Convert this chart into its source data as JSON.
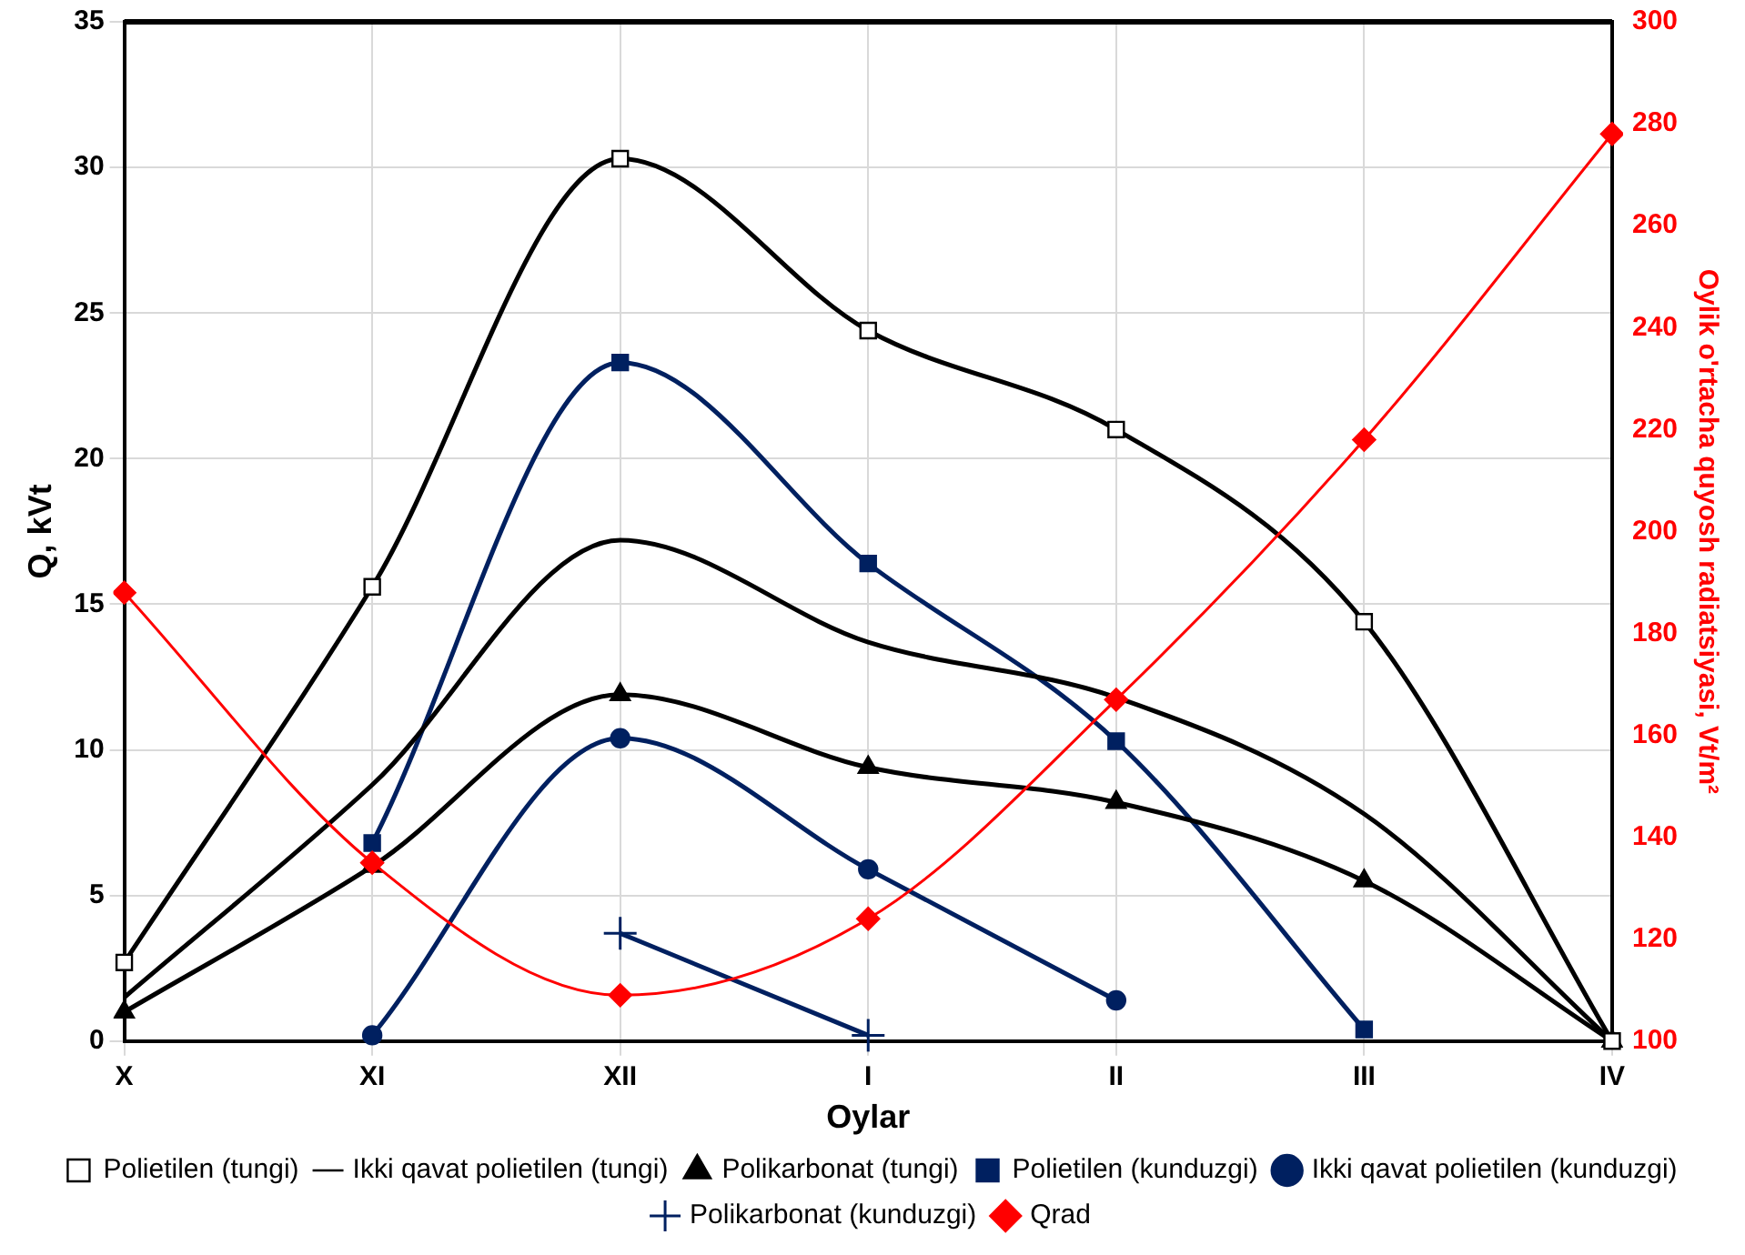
{
  "chart_data": {
    "type": "line",
    "xlabel": "Oylar",
    "ylabel": "Q, kVt",
    "y2label": "Oylik o'rtacha quyosh radiatsiyasi, Vt/m²",
    "categories": [
      "X",
      "XI",
      "XII",
      "I",
      "II",
      "III",
      "IV"
    ],
    "series": [
      {
        "name": "Polietilen (tungi)",
        "color": "#000000",
        "marker": "square",
        "values": [
          2.7,
          15.6,
          30.3,
          24.4,
          21.0,
          14.4,
          0
        ]
      },
      {
        "name": "Ikki qavat polietilen (tungi)",
        "color": "#000000",
        "marker": "none",
        "values": [
          1.5,
          8.8,
          17.2,
          13.7,
          11.8,
          7.8,
          0
        ]
      },
      {
        "name": "Polikarbonat (tungi)",
        "color": "#000000",
        "marker": "triangle",
        "values": [
          1.0,
          6.0,
          11.9,
          9.4,
          8.2,
          5.5,
          0
        ]
      },
      {
        "name": "Polietilen (kunduzgi)",
        "color": "#002060",
        "marker": "square",
        "values": [
          null,
          6.8,
          23.3,
          16.4,
          10.3,
          0.4,
          null
        ]
      },
      {
        "name": "Ikki qavat polietilen (kunduzgi)",
        "color": "#002060",
        "marker": "circle",
        "values": [
          null,
          0.2,
          10.4,
          5.9,
          1.4,
          null,
          null
        ]
      },
      {
        "name": "Polikarbonat (kunduzgi)",
        "color": "#002060",
        "marker": "cross",
        "values": [
          null,
          null,
          3.7,
          0.2,
          null,
          null,
          null
        ]
      },
      {
        "name": "Qrad",
        "color": "#ff0000",
        "marker": "diamond",
        "axis": "y2",
        "values": [
          188,
          135,
          109,
          124,
          167,
          218,
          278
        ]
      }
    ],
    "ylim": [
      0,
      35
    ],
    "yticks": [
      0,
      5,
      10,
      15,
      20,
      25,
      30,
      35
    ],
    "y2lim": [
      100,
      300
    ],
    "y2ticks": [
      100,
      120,
      140,
      160,
      180,
      200,
      220,
      240,
      260,
      280,
      300
    ],
    "grid": true,
    "legend": "bottom"
  }
}
